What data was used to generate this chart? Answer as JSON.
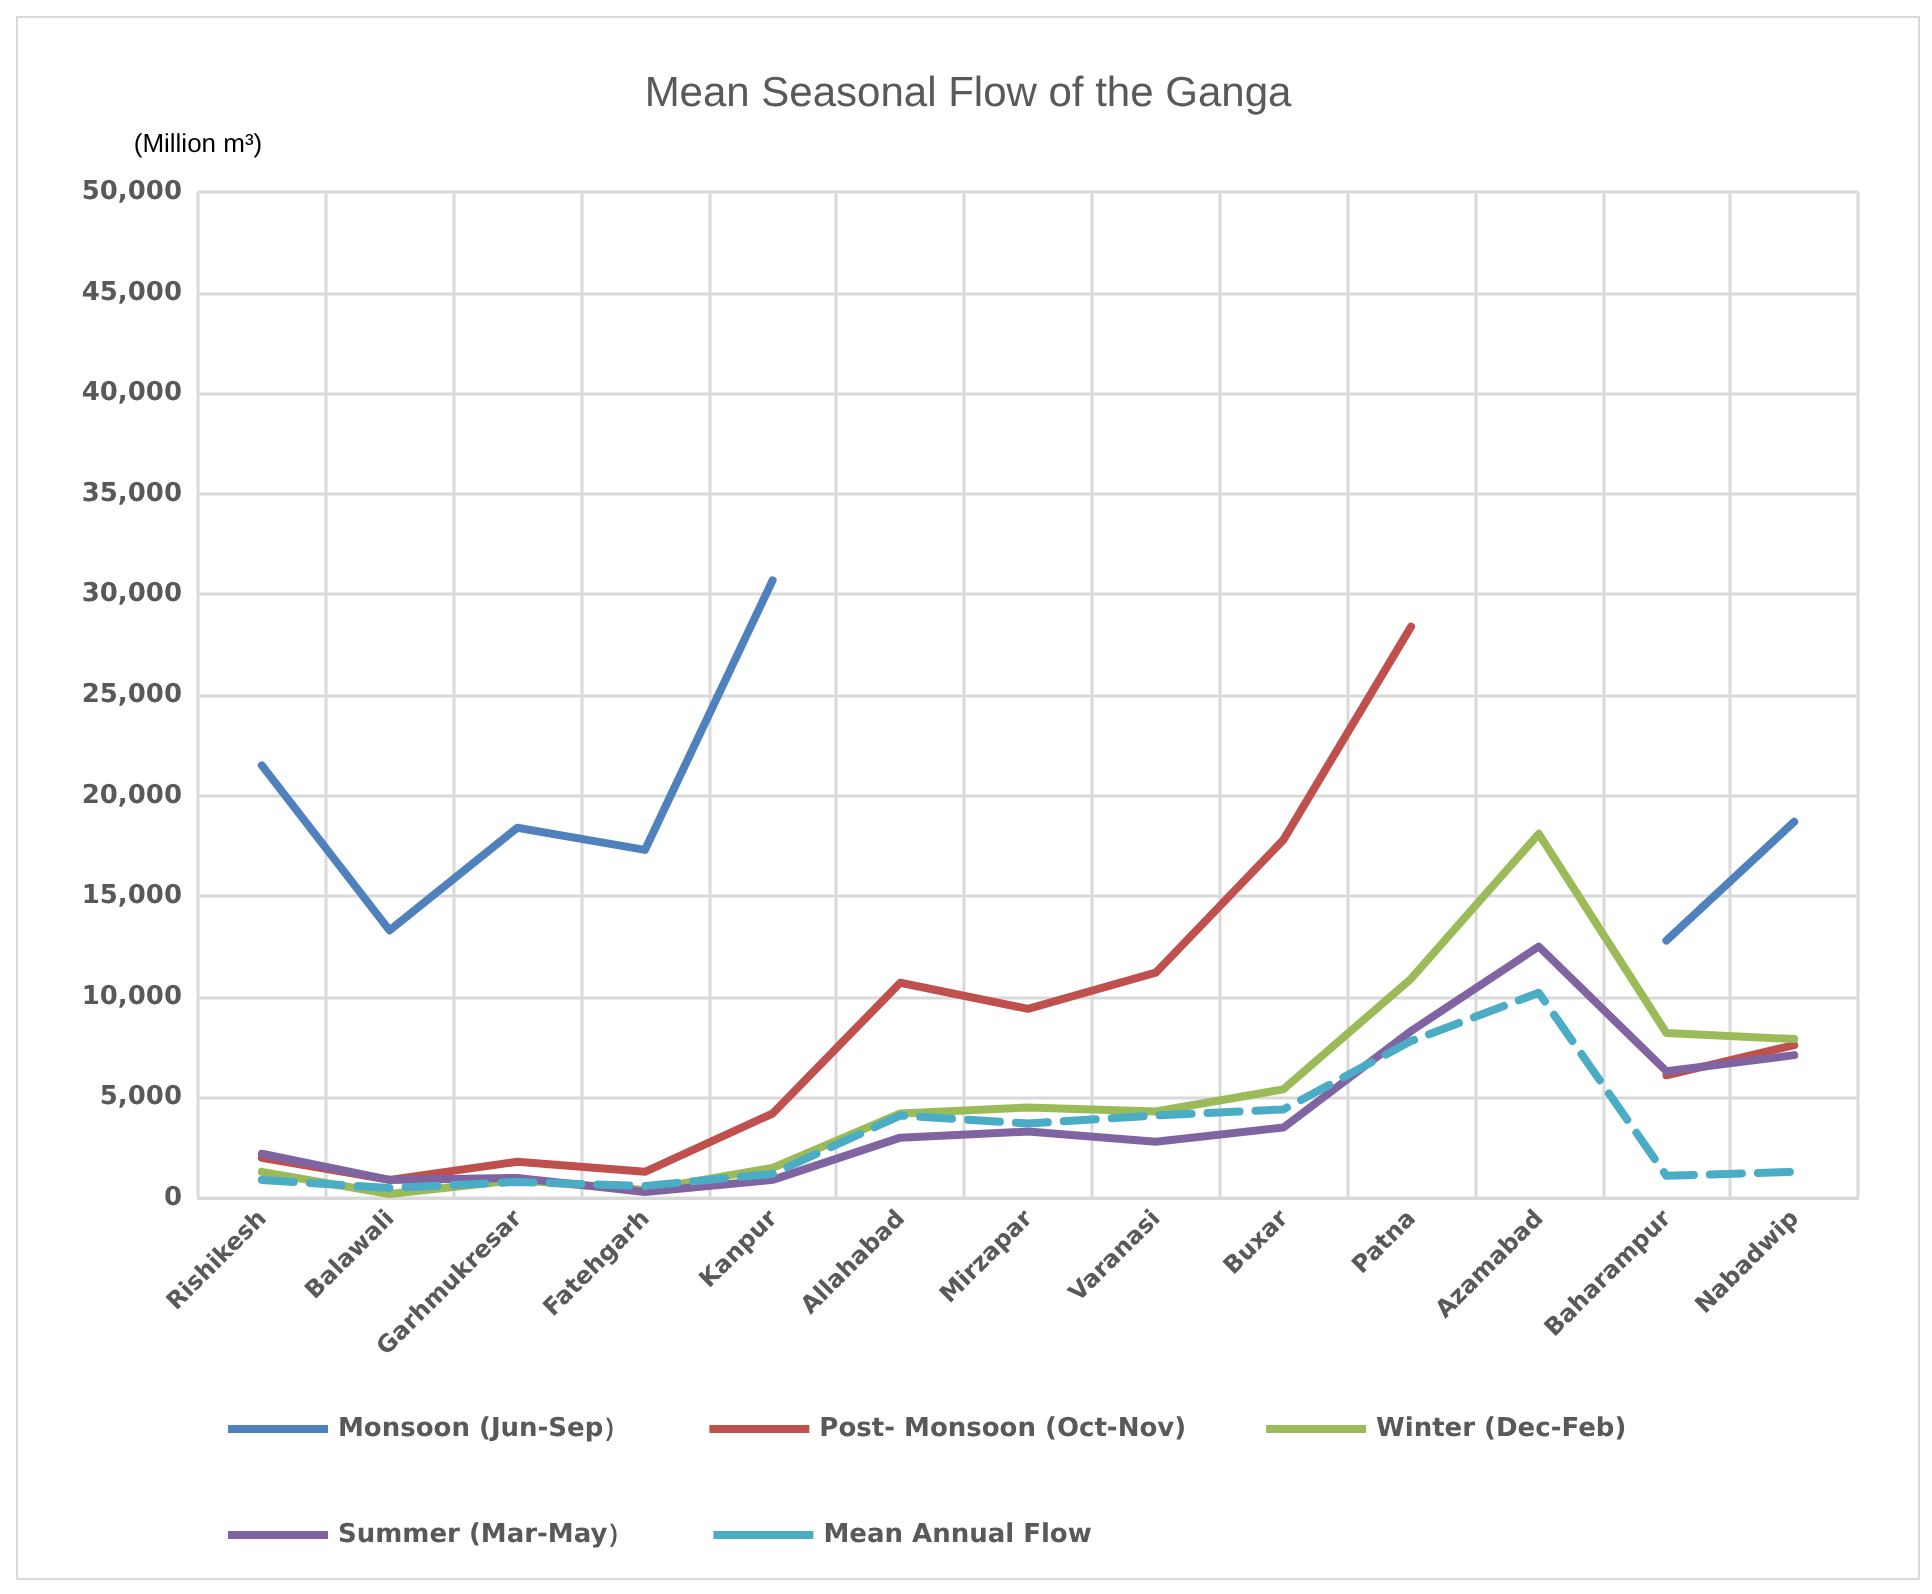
{
  "chart_data": {
    "type": "line",
    "title": "Mean Seasonal Flow of the Ganga",
    "ylabel": "(Million m³)",
    "categories": [
      "Rishikesh",
      "Balawali",
      "Garhmukresar",
      "Fatehgarh",
      "Kanpur",
      "Allahabad",
      "Mirzapar",
      "Varanasi",
      "Buxar",
      "Patna",
      "Azamabad",
      "Baharampur",
      "Nabadwip"
    ],
    "series": [
      {
        "name": "Monsoon (Jun-Sep）",
        "color": "#4f81bd",
        "values": [
          21500,
          13300,
          18400,
          17300,
          30700,
          null,
          null,
          null,
          null,
          null,
          null,
          12800,
          18700
        ]
      },
      {
        "name": "Post- Monsoon (Oct-Nov)",
        "color": "#c0504d",
        "values": [
          2000,
          900,
          1800,
          1300,
          4200,
          10700,
          9400,
          11200,
          17800,
          28400,
          null,
          6100,
          7600
        ]
      },
      {
        "name": "Winter (Dec-Feb)",
        "color": "#9bbb59",
        "values": [
          1300,
          200,
          900,
          400,
          1500,
          4200,
          4500,
          4300,
          5400,
          10900,
          18100,
          8200,
          7900
        ]
      },
      {
        "name": "Summer (Mar-May）",
        "color": "#8064a2",
        "values": [
          2200,
          900,
          1000,
          300,
          900,
          3000,
          3300,
          2800,
          3500,
          8300,
          12500,
          6300,
          7100
        ]
      },
      {
        "name": "Mean Annual Flow",
        "color": "#4bacc6",
        "line_style": "dashed",
        "values": [
          900,
          500,
          800,
          600,
          1200,
          4100,
          3700,
          4100,
          4400,
          7800,
          10200,
          1100,
          1300
        ]
      }
    ],
    "ylim": [
      0,
      50000
    ],
    "yticks": [
      0,
      {
        "value": 5000,
        "label": "5,000"
      },
      {
        "value": 10000,
        "label": "10,000"
      },
      {
        "value": 15000,
        "label": "15,000"
      },
      {
        "value": 20000,
        "label": "20,000"
      },
      {
        "value": 25000,
        "label": "25,000"
      },
      {
        "value": 30000,
        "label": "30,000"
      },
      {
        "value": 35000,
        "label": "35,000"
      },
      {
        "value": 40000,
        "label": "40,000"
      },
      {
        "value": 45000,
        "label": "45,000"
      },
      {
        "value": 50000,
        "label": "50,000"
      }
    ],
    "grid": true,
    "legend": "bottom",
    "marker": "none",
    "line_style": "solid"
  }
}
